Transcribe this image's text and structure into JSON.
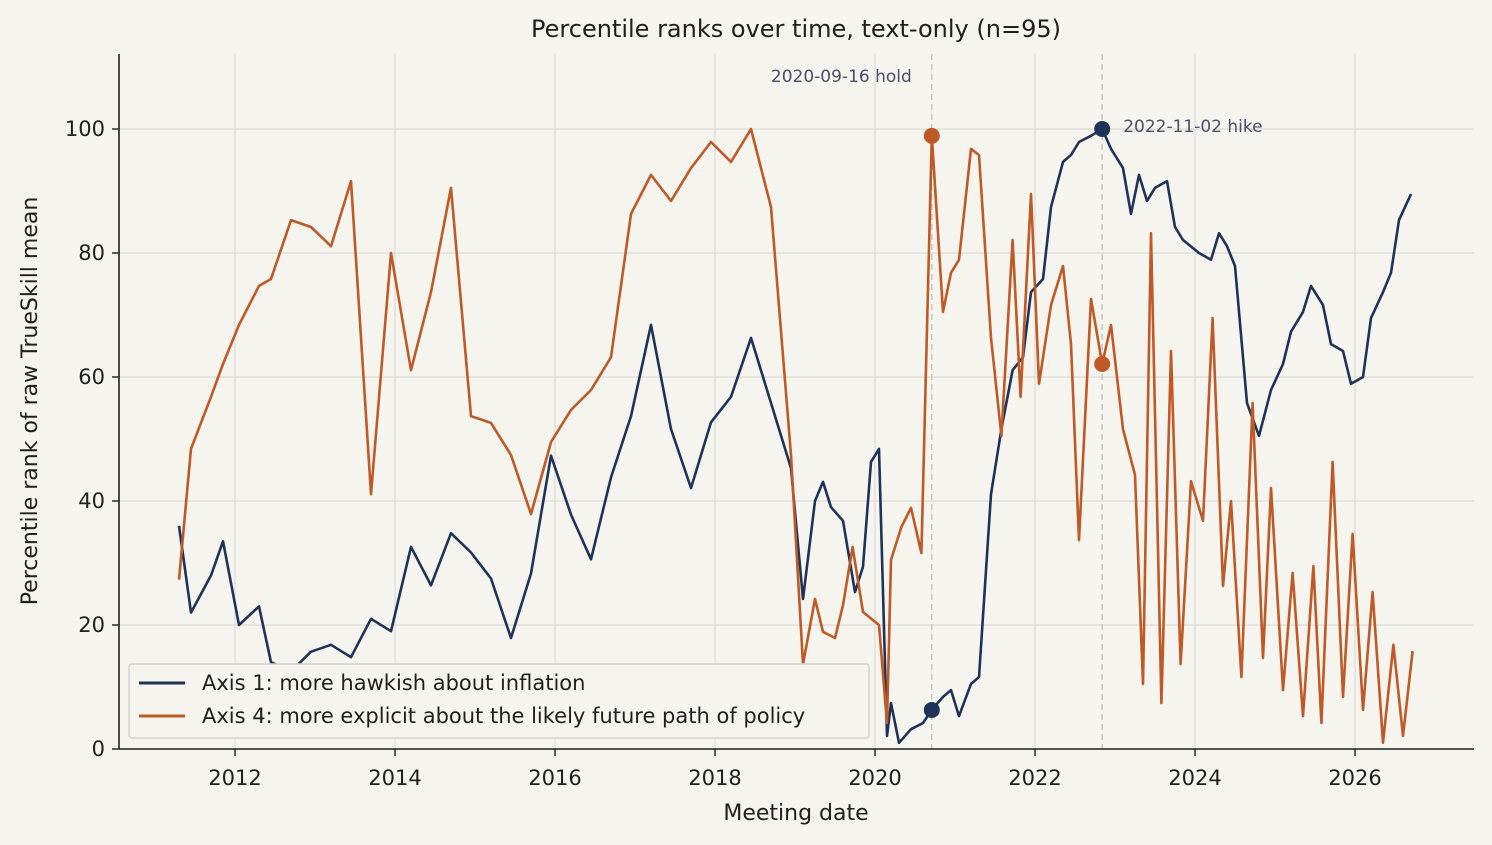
{
  "chart_data": {
    "type": "line",
    "title": "Percentile ranks over time, text-only (n=95)",
    "xlabel": "Meeting date",
    "ylabel": "Percentile rank of raw TrueSkill mean",
    "xlim": [
      2010.6,
      2027.5
    ],
    "ylim": [
      0,
      112
    ],
    "xticks": [
      2012,
      2014,
      2016,
      2018,
      2020,
      2022,
      2024,
      2026
    ],
    "xtick_labels": [
      "2012",
      "2014",
      "2016",
      "2018",
      "2020",
      "2022",
      "2024",
      "2026"
    ],
    "yticks": [
      0,
      20,
      40,
      60,
      80,
      100
    ],
    "ytick_labels": [
      "0",
      "20",
      "40",
      "60",
      "80",
      "100"
    ],
    "grid": true,
    "legend_position": "lower-left",
    "series": [
      {
        "name": "Axis 1: more hawkish about inflation",
        "color": "#1f3358",
        "points": [
          [
            2011.3,
            36
          ],
          [
            2011.45,
            22
          ],
          [
            2011.7,
            28
          ],
          [
            2011.85,
            33.5
          ],
          [
            2012.05,
            20
          ],
          [
            2012.3,
            23
          ],
          [
            2012.45,
            14
          ],
          [
            2012.7,
            12.5
          ],
          [
            2012.95,
            15.7
          ],
          [
            2013.2,
            16.8
          ],
          [
            2013.45,
            14.8
          ],
          [
            2013.7,
            21
          ],
          [
            2013.95,
            19
          ],
          [
            2014.2,
            32.6
          ],
          [
            2014.45,
            26.4
          ],
          [
            2014.7,
            34.8
          ],
          [
            2014.95,
            31.7
          ],
          [
            2015.2,
            27.5
          ],
          [
            2015.45,
            17.9
          ],
          [
            2015.7,
            28.3
          ],
          [
            2015.95,
            47.3
          ],
          [
            2016.2,
            37.8
          ],
          [
            2016.45,
            30.6
          ],
          [
            2016.7,
            43.8
          ],
          [
            2016.95,
            53.7
          ],
          [
            2017.2,
            68.4
          ],
          [
            2017.45,
            51.6
          ],
          [
            2017.7,
            42.1
          ],
          [
            2017.95,
            52.7
          ],
          [
            2018.2,
            56.8
          ],
          [
            2018.45,
            66.3
          ],
          [
            2018.7,
            55.8
          ],
          [
            2018.95,
            45.3
          ],
          [
            2019.1,
            24.2
          ],
          [
            2019.25,
            40
          ],
          [
            2019.35,
            43.1
          ],
          [
            2019.45,
            39
          ],
          [
            2019.6,
            36.8
          ],
          [
            2019.75,
            25.3
          ],
          [
            2019.85,
            29.4
          ],
          [
            2019.95,
            46.3
          ],
          [
            2020.05,
            48.4
          ],
          [
            2020.15,
            2.1
          ],
          [
            2020.2,
            7.4
          ],
          [
            2020.3,
            1
          ],
          [
            2020.45,
            3.2
          ],
          [
            2020.6,
            4.2
          ],
          [
            2020.71,
            6.3
          ],
          [
            2020.85,
            8.4
          ],
          [
            2020.95,
            9.5
          ],
          [
            2021.05,
            5.3
          ],
          [
            2021.2,
            10.5
          ],
          [
            2021.3,
            11.6
          ],
          [
            2021.45,
            41.1
          ],
          [
            2021.58,
            51.6
          ],
          [
            2021.72,
            61.1
          ],
          [
            2021.85,
            63.2
          ],
          [
            2021.95,
            73.7
          ],
          [
            2022.1,
            75.8
          ],
          [
            2022.2,
            87.4
          ],
          [
            2022.35,
            94.7
          ],
          [
            2022.45,
            95.8
          ],
          [
            2022.55,
            97.9
          ],
          [
            2022.7,
            98.9
          ],
          [
            2022.84,
            100
          ],
          [
            2022.95,
            96.8
          ],
          [
            2023.1,
            93.7
          ],
          [
            2023.2,
            86.3
          ],
          [
            2023.3,
            92.6
          ],
          [
            2023.4,
            88.4
          ],
          [
            2023.5,
            90.5
          ],
          [
            2023.65,
            91.6
          ],
          [
            2023.75,
            84.2
          ],
          [
            2023.85,
            82.1
          ],
          [
            2024.05,
            80
          ],
          [
            2024.2,
            78.9
          ],
          [
            2024.3,
            83.2
          ],
          [
            2024.4,
            81.1
          ],
          [
            2024.5,
            77.9
          ],
          [
            2024.65,
            55.8
          ],
          [
            2024.8,
            50.5
          ],
          [
            2024.95,
            57.9
          ],
          [
            2025.1,
            62.1
          ],
          [
            2025.2,
            67.3
          ],
          [
            2025.35,
            70.5
          ],
          [
            2025.45,
            74.7
          ],
          [
            2025.6,
            71.6
          ],
          [
            2025.7,
            65.3
          ],
          [
            2025.85,
            64.2
          ],
          [
            2025.95,
            58.9
          ],
          [
            2026.1,
            60
          ],
          [
            2026.2,
            69.5
          ],
          [
            2026.35,
            73.7
          ],
          [
            2026.45,
            76.8
          ],
          [
            2026.55,
            85.3
          ],
          [
            2026.7,
            89.5
          ]
        ]
      },
      {
        "name": "Axis 4: more explicit about the likely future path of policy",
        "color": "#bf5a27",
        "points": [
          [
            2011.3,
            27.3
          ],
          [
            2011.45,
            48.4
          ],
          [
            2011.7,
            56.8
          ],
          [
            2011.85,
            62.1
          ],
          [
            2012.05,
            68.4
          ],
          [
            2012.3,
            74.7
          ],
          [
            2012.45,
            75.8
          ],
          [
            2012.7,
            85.3
          ],
          [
            2012.95,
            84.2
          ],
          [
            2013.2,
            81.1
          ],
          [
            2013.45,
            91.6
          ],
          [
            2013.7,
            41.1
          ],
          [
            2013.95,
            80
          ],
          [
            2014.2,
            61.1
          ],
          [
            2014.45,
            73.7
          ],
          [
            2014.7,
            90.5
          ],
          [
            2014.95,
            53.7
          ],
          [
            2015.2,
            52.6
          ],
          [
            2015.45,
            47.4
          ],
          [
            2015.7,
            37.9
          ],
          [
            2015.95,
            49.5
          ],
          [
            2016.2,
            54.7
          ],
          [
            2016.45,
            57.9
          ],
          [
            2016.7,
            63.2
          ],
          [
            2016.95,
            86.3
          ],
          [
            2017.2,
            92.6
          ],
          [
            2017.45,
            88.4
          ],
          [
            2017.7,
            93.7
          ],
          [
            2017.95,
            97.9
          ],
          [
            2018.2,
            94.7
          ],
          [
            2018.45,
            100
          ],
          [
            2018.7,
            87.4
          ],
          [
            2018.95,
            47.4
          ],
          [
            2019.1,
            13.7
          ],
          [
            2019.25,
            24.2
          ],
          [
            2019.35,
            18.9
          ],
          [
            2019.5,
            17.9
          ],
          [
            2019.6,
            23.2
          ],
          [
            2019.72,
            32.6
          ],
          [
            2019.85,
            22.1
          ],
          [
            2020.05,
            20
          ],
          [
            2020.15,
            4.2
          ],
          [
            2020.2,
            30.5
          ],
          [
            2020.33,
            35.8
          ],
          [
            2020.45,
            38.9
          ],
          [
            2020.58,
            31.6
          ],
          [
            2020.71,
            98.9
          ],
          [
            2020.85,
            70.5
          ],
          [
            2020.95,
            76.8
          ],
          [
            2021.05,
            78.9
          ],
          [
            2021.2,
            96.8
          ],
          [
            2021.3,
            95.8
          ],
          [
            2021.45,
            66.3
          ],
          [
            2021.58,
            50.5
          ],
          [
            2021.72,
            82.1
          ],
          [
            2021.82,
            56.8
          ],
          [
            2021.95,
            89.5
          ],
          [
            2022.05,
            58.9
          ],
          [
            2022.2,
            71.6
          ],
          [
            2022.35,
            77.9
          ],
          [
            2022.45,
            65.3
          ],
          [
            2022.55,
            33.7
          ],
          [
            2022.7,
            72.6
          ],
          [
            2022.84,
            62.1
          ],
          [
            2022.95,
            68.4
          ],
          [
            2023.1,
            51.6
          ],
          [
            2023.25,
            44.2
          ],
          [
            2023.35,
            10.5
          ],
          [
            2023.45,
            83.2
          ],
          [
            2023.58,
            7.4
          ],
          [
            2023.7,
            64.2
          ],
          [
            2023.82,
            13.7
          ],
          [
            2023.95,
            43.2
          ],
          [
            2024.1,
            36.8
          ],
          [
            2024.22,
            69.5
          ],
          [
            2024.35,
            26.3
          ],
          [
            2024.45,
            40
          ],
          [
            2024.58,
            11.6
          ],
          [
            2024.72,
            55.8
          ],
          [
            2024.85,
            14.7
          ],
          [
            2024.95,
            42.1
          ],
          [
            2025.1,
            9.5
          ],
          [
            2025.22,
            28.4
          ],
          [
            2025.35,
            5.3
          ],
          [
            2025.48,
            29.5
          ],
          [
            2025.58,
            4.2
          ],
          [
            2025.72,
            46.3
          ],
          [
            2025.85,
            8.4
          ],
          [
            2025.97,
            34.7
          ],
          [
            2026.1,
            6.3
          ],
          [
            2026.22,
            25.3
          ],
          [
            2026.35,
            1
          ],
          [
            2026.48,
            16.8
          ],
          [
            2026.6,
            2.1
          ],
          [
            2026.72,
            15.8
          ]
        ]
      }
    ],
    "vlines": [
      {
        "x": 2020.71,
        "label": "2020-09-16 hold"
      },
      {
        "x": 2022.84,
        "label": "2022-11-02 hike"
      }
    ],
    "markers": [
      {
        "x": 2020.71,
        "y": 98.9,
        "color": "#bf5a27"
      },
      {
        "x": 2020.71,
        "y": 6.3,
        "color": "#1f3358"
      },
      {
        "x": 2022.84,
        "y": 100,
        "color": "#1f3358"
      },
      {
        "x": 2022.84,
        "y": 62.1,
        "color": "#bf5a27"
      }
    ]
  }
}
